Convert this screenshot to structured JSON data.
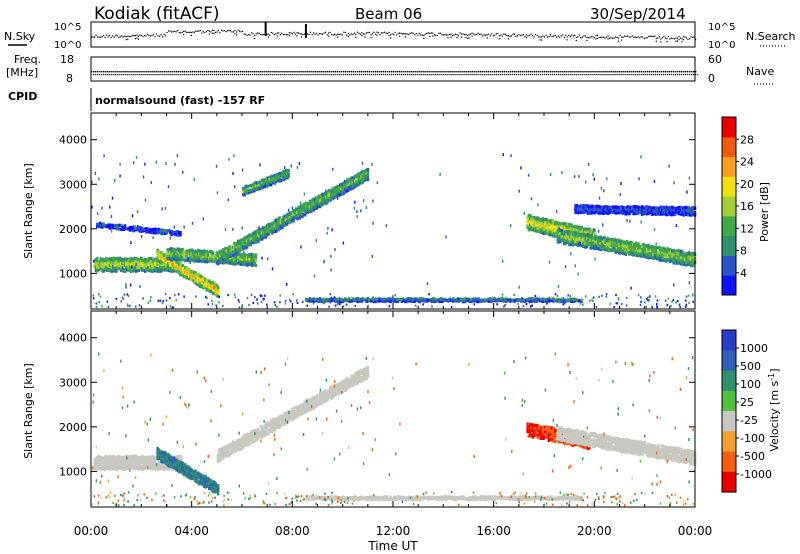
{
  "header": {
    "station": "Kodiak (fitACF)",
    "beam": "Beam 06",
    "date": "30/Sep/2014"
  },
  "strip_noise": {
    "left_label": "N.Sky",
    "right_label": "N.Search",
    "left_ticks": [
      "10^5",
      "10^0"
    ],
    "right_ticks": [
      "10^5",
      "10^0"
    ]
  },
  "strip_freq": {
    "left_label_1": "Freq.",
    "left_label_2": "[MHz]",
    "left_ticks": [
      "18",
      "8"
    ],
    "right_label": "Nave",
    "right_ticks": [
      "60",
      "0"
    ]
  },
  "cpid": {
    "label": "CPID",
    "program": "normalsound (fast) -157 RF"
  },
  "chart_data": [
    {
      "type": "heatmap",
      "name": "power",
      "ylabel": "Slant Range [km]",
      "yticks": [
        "1000",
        "2000",
        "3000",
        "4000"
      ],
      "ylim": [
        200,
        4600
      ],
      "xlim": [
        0,
        24
      ],
      "colorbar": {
        "label": "Power [dB]",
        "ticks": [
          "4",
          "8",
          "12",
          "16",
          "20",
          "24",
          "28"
        ],
        "range": [
          0,
          32
        ],
        "colors": [
          "#1010ff",
          "#2a55c8",
          "#2f8f6e",
          "#43a84a",
          "#a5cf3a",
          "#f0e010",
          "#f7a020",
          "#f05a10",
          "#e80000"
        ]
      },
      "echo_bands": [
        {
          "t": [
            0.1,
            3.5
          ],
          "r": [
            1250,
            1250
          ],
          "w": 300,
          "p": 18
        },
        {
          "t": [
            2.6,
            5.0
          ],
          "r": [
            1450,
            650
          ],
          "w": 250,
          "p": 22
        },
        {
          "t": [
            3.0,
            6.5
          ],
          "r": [
            1500,
            1350
          ],
          "w": 250,
          "p": 15
        },
        {
          "t": [
            5.0,
            11.0
          ],
          "r": [
            1400,
            3300
          ],
          "w": 260,
          "p": 14
        },
        {
          "t": [
            0.2,
            3.5
          ],
          "r": [
            2150,
            1950
          ],
          "w": 100,
          "p": 5
        },
        {
          "t": [
            6.0,
            7.8
          ],
          "r": [
            2900,
            3300
          ],
          "w": 200,
          "p": 13
        },
        {
          "t": [
            17.3,
            20.0
          ],
          "r": [
            2200,
            1850
          ],
          "w": 350,
          "p": 20
        },
        {
          "t": [
            18.5,
            24.0
          ],
          "r": [
            1900,
            1350
          ],
          "w": 300,
          "p": 16
        },
        {
          "t": [
            19.2,
            24.0
          ],
          "r": [
            2500,
            2450
          ],
          "w": 180,
          "p": 5
        },
        {
          "t": [
            8.5,
            19.5
          ],
          "r": [
            450,
            450
          ],
          "w": 60,
          "p": 8
        }
      ]
    },
    {
      "type": "heatmap",
      "name": "velocity",
      "ylabel": "Slant Range [km]",
      "yticks": [
        "1000",
        "2000",
        "3000",
        "4000"
      ],
      "ylim": [
        200,
        4600
      ],
      "xlim": [
        0,
        24
      ],
      "xticks": [
        "00:00",
        "04:00",
        "08:00",
        "12:00",
        "16:00",
        "20:00",
        "00:00"
      ],
      "xlabel": "Time UT",
      "colorbar": {
        "label": "Velocity [m s^-1]",
        "ticks": [
          "1000",
          "500",
          "100",
          "25",
          "-25",
          "-100",
          "-500",
          "-1000"
        ],
        "colors": [
          "#2a3cc8",
          "#3060b8",
          "#2f8f6e",
          "#55c040",
          "#c8c8c0",
          "#f0a030",
          "#f06010",
          "#e80000"
        ]
      },
      "echo_bands": [
        {
          "t": [
            0.1,
            3.5
          ],
          "r": [
            1250,
            1250
          ],
          "w": 300,
          "v": 0
        },
        {
          "t": [
            2.6,
            5.0
          ],
          "r": [
            1450,
            650
          ],
          "w": 250,
          "v": 300
        },
        {
          "t": [
            5.0,
            11.0
          ],
          "r": [
            1400,
            3300
          ],
          "w": 260,
          "v": 0
        },
        {
          "t": [
            17.3,
            19.8
          ],
          "r": [
            2000,
            1700
          ],
          "w": 300,
          "v": -300
        },
        {
          "t": [
            18.5,
            24.0
          ],
          "r": [
            1900,
            1350
          ],
          "w": 300,
          "v": 0
        },
        {
          "t": [
            8.5,
            19.5
          ],
          "r": [
            450,
            450
          ],
          "w": 60,
          "v": 0
        }
      ]
    }
  ]
}
